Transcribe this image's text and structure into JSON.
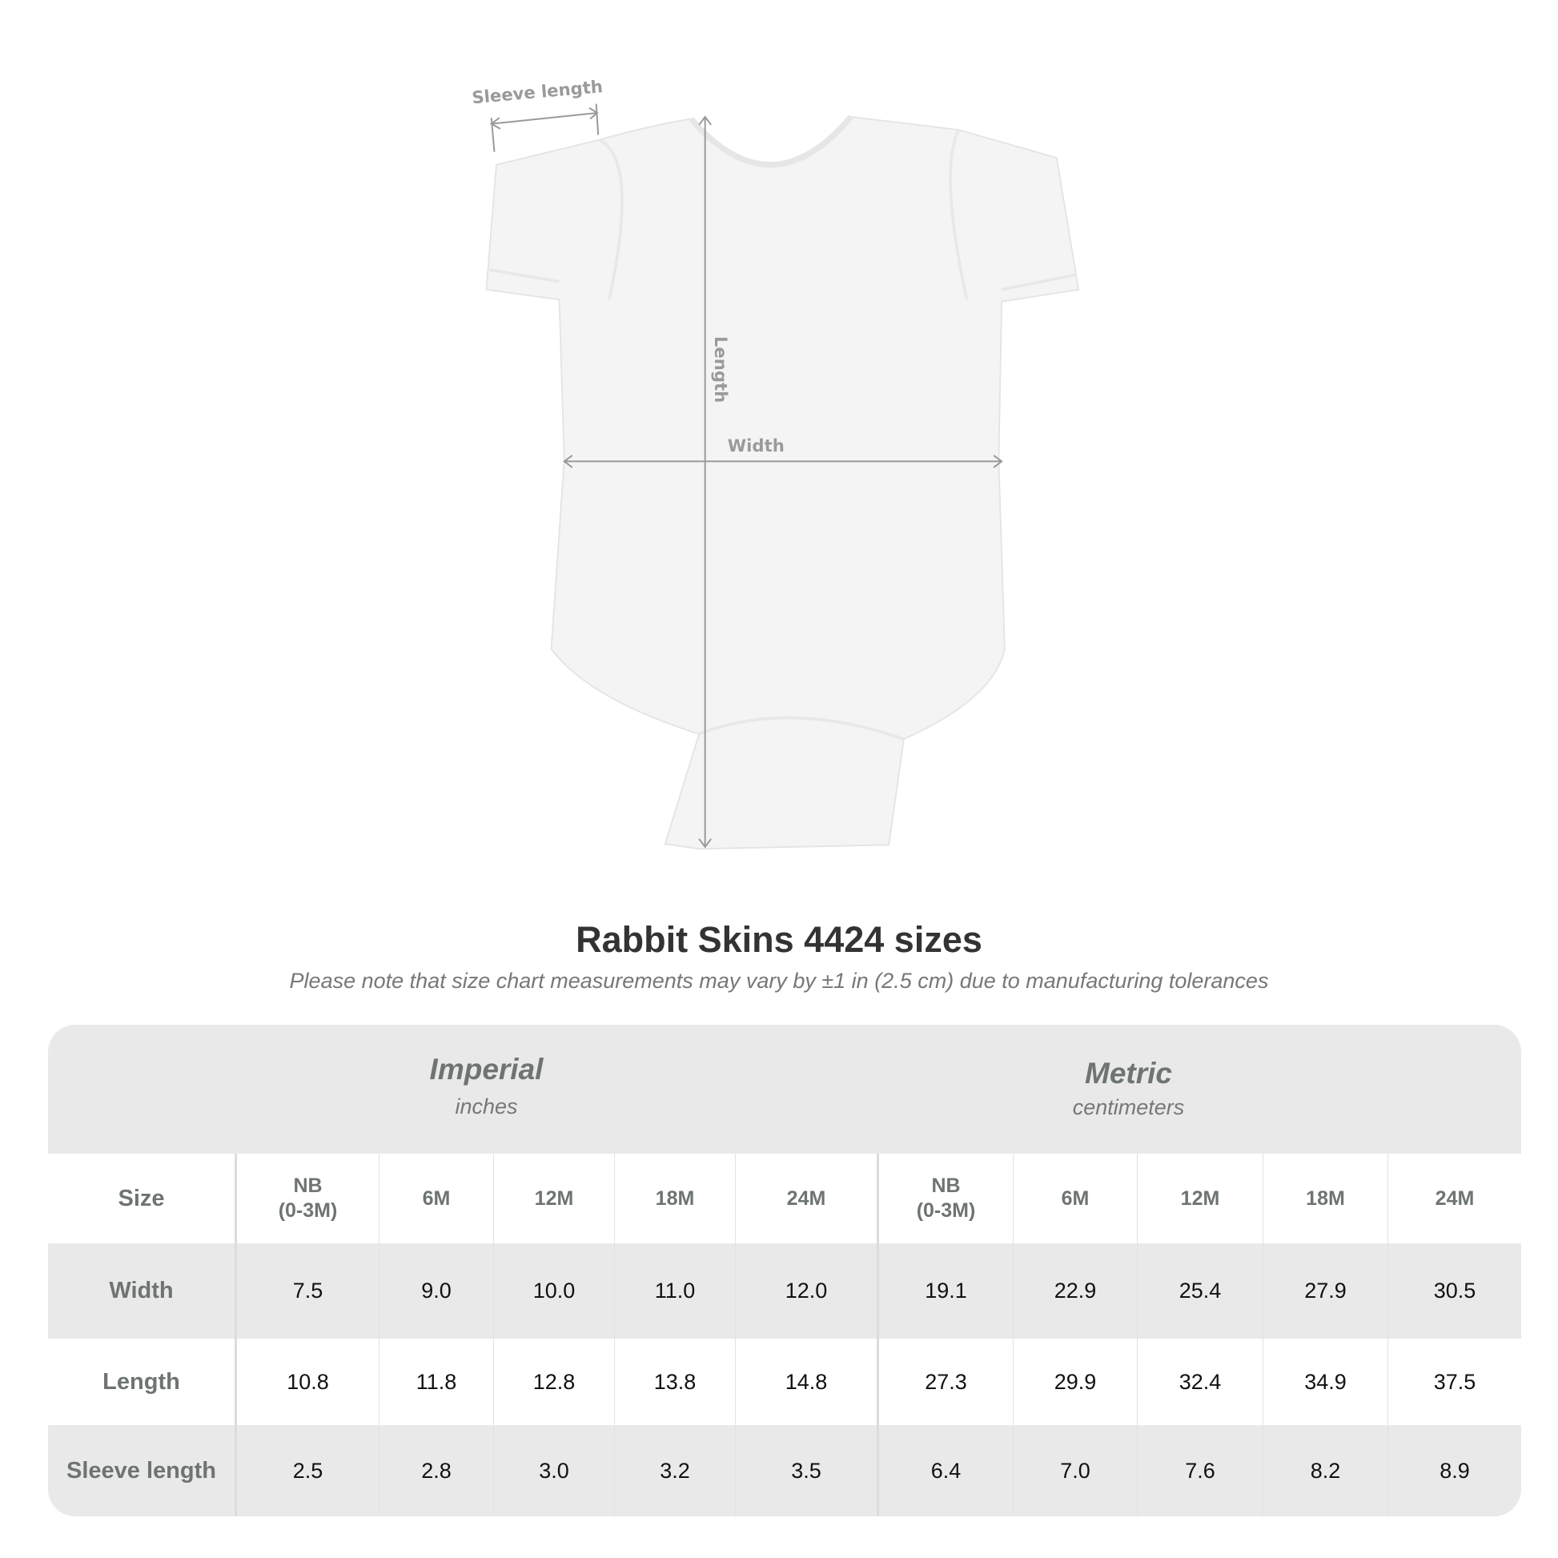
{
  "diagram": {
    "labels": {
      "sleeve": "Sleeve length",
      "length": "Length",
      "width": "Width"
    },
    "colors": {
      "garment": "#f4f4f4",
      "measure": "#9a9a9a"
    }
  },
  "title": "Rabbit Skins 4424 sizes",
  "subtitle": "Please note that size chart measurements may vary by ±1 in (2.5 cm) due to manufacturing tolerances",
  "table": {
    "imperial": {
      "title": "Imperial",
      "unit": "inches"
    },
    "metric": {
      "title": "Metric",
      "unit": "centimeters"
    },
    "size_label": "Size",
    "sizes": [
      "NB\n(0-3M)",
      "6M",
      "12M",
      "18M",
      "24M"
    ],
    "rows": [
      {
        "label": "Width",
        "imperial": [
          "7.5",
          "9.0",
          "10.0",
          "11.0",
          "12.0"
        ],
        "metric": [
          "19.1",
          "22.9",
          "25.4",
          "27.9",
          "30.5"
        ]
      },
      {
        "label": "Length",
        "imperial": [
          "10.8",
          "11.8",
          "12.8",
          "13.8",
          "14.8"
        ],
        "metric": [
          "27.3",
          "29.9",
          "32.4",
          "34.9",
          "37.5"
        ]
      },
      {
        "label": "Sleeve length",
        "imperial": [
          "2.5",
          "2.8",
          "3.0",
          "3.2",
          "3.5"
        ],
        "metric": [
          "6.4",
          "7.0",
          "7.6",
          "8.2",
          "8.9"
        ]
      }
    ]
  }
}
